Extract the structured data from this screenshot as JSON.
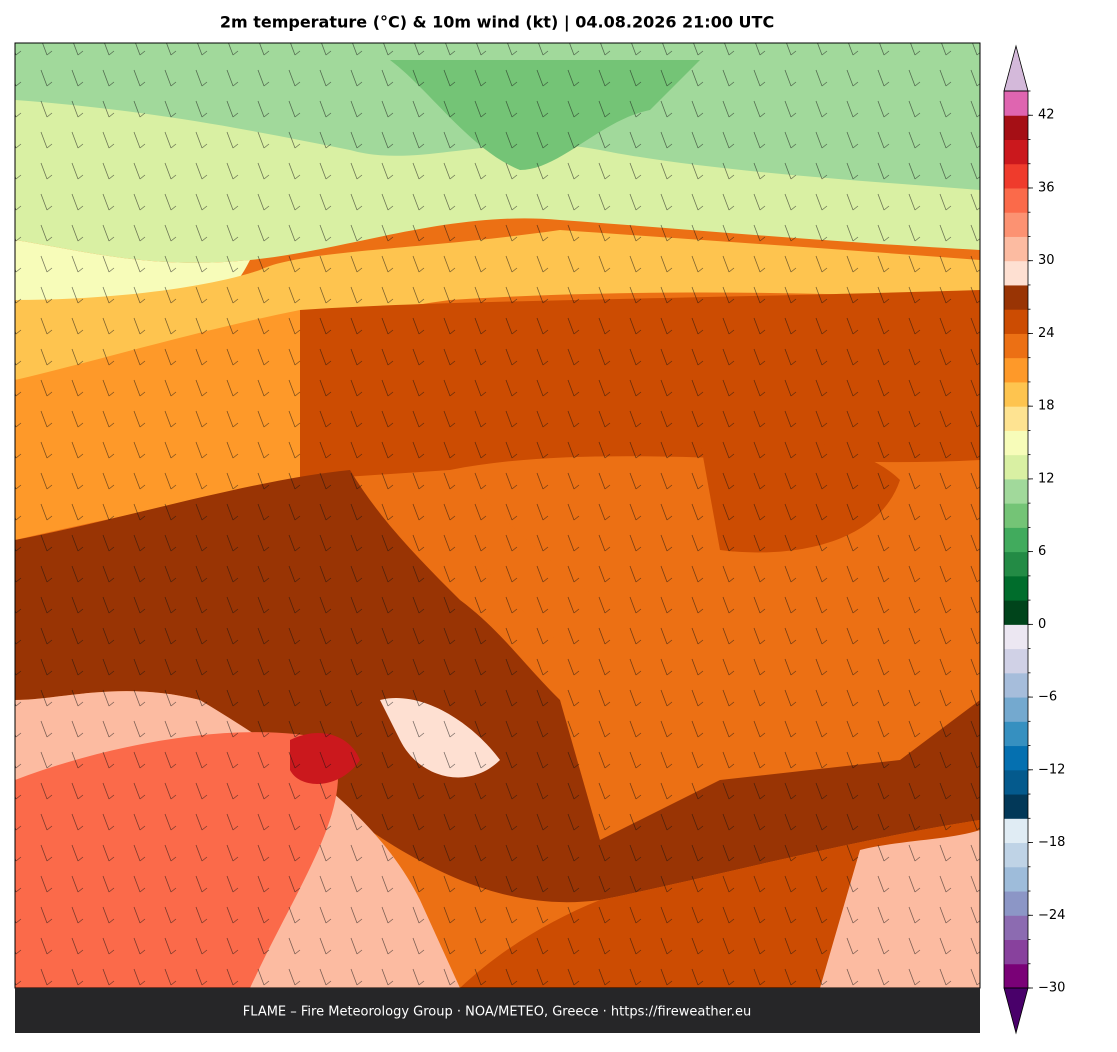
{
  "title": "2m temperature (°C) & 10m wind (kt)  |  04.08.2026 21:00 UTC",
  "footer": "FLAME – Fire Meteorology Group · NOA/METEO, Greece · https://fireweather.eu",
  "colorbar": {
    "lim": [
      -30,
      44
    ],
    "levels": [
      -30,
      -28,
      -26,
      -24,
      -22,
      -20,
      -18,
      -16,
      -14,
      -12,
      -10,
      -8,
      -6,
      -4,
      -2,
      0,
      2,
      4,
      6,
      8,
      10,
      12,
      14,
      16,
      18,
      20,
      22,
      24,
      26,
      28,
      30,
      32,
      34,
      36,
      38,
      40,
      42,
      44
    ],
    "colors": [
      "#7a0177",
      "#88419d",
      "#8c6bb1",
      "#8c96c6",
      "#9ebcda",
      "#bfd3e6",
      "#e0ecf4",
      "#023858",
      "#045a8d",
      "#0570b0",
      "#3690c0",
      "#74a9cf",
      "#a6bddb",
      "#d0d1e6",
      "#ece7f2",
      "#00441b",
      "#006d2c",
      "#238b45",
      "#41ab5d",
      "#74c476",
      "#a1d99b",
      "#d9f0a3",
      "#f7fcb9",
      "#fee391",
      "#fec44f",
      "#fe9929",
      "#ec7014",
      "#cc4c02",
      "#993404",
      "#fee0d2",
      "#fcbba1",
      "#fc9272",
      "#fb6a4a",
      "#ef3b2c",
      "#cb181d",
      "#a50f15",
      "#df65b0"
    ],
    "under_color": "#49006a",
    "over_color": "#d4b9da",
    "ticks": [
      {
        "value": -30,
        "label": "−30"
      },
      {
        "value": -24,
        "label": "−24"
      },
      {
        "value": -18,
        "label": "−18"
      },
      {
        "value": -12,
        "label": "−12"
      },
      {
        "value": -6,
        "label": "−6"
      },
      0,
      6,
      12,
      18,
      24,
      30,
      36,
      42
    ]
  }
}
